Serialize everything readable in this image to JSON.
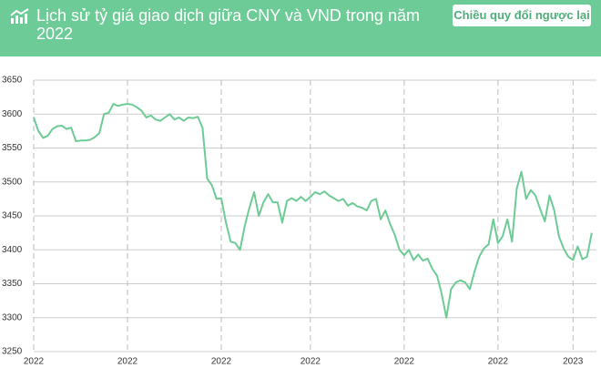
{
  "header": {
    "title": "Lịch sử tỷ giá giao dịch giữa CNY và VND trong năm 2022",
    "button": "Chiều quy đổi ngược lại"
  },
  "chart_data": {
    "type": "line",
    "series": [
      {
        "color": "#6dcb95",
        "values": [
          3595,
          3575,
          3565,
          3568,
          3578,
          3582,
          3583,
          3578,
          3580,
          3560,
          3561,
          3561,
          3562,
          3566,
          3572,
          3600,
          3602,
          3615,
          3612,
          3614,
          3615,
          3614,
          3610,
          3605,
          3595,
          3598,
          3592,
          3590,
          3595,
          3600,
          3592,
          3595,
          3590,
          3595,
          3594,
          3596,
          3580,
          3505,
          3495,
          3475,
          3476,
          3440,
          3412,
          3410,
          3400,
          3435,
          3462,
          3485,
          3450,
          3470,
          3482,
          3470,
          3470,
          3440,
          3472,
          3476,
          3472,
          3478,
          3472,
          3478,
          3485,
          3482,
          3486,
          3480,
          3476,
          3472,
          3475,
          3465,
          3469,
          3464,
          3462,
          3458,
          3472,
          3475,
          3445,
          3458,
          3438,
          3422,
          3400,
          3392,
          3400,
          3385,
          3393,
          3384,
          3387,
          3372,
          3362,
          3335,
          3300,
          3342,
          3352,
          3355,
          3352,
          3342,
          3368,
          3390,
          3402,
          3408,
          3445,
          3410,
          3420,
          3445,
          3412,
          3490,
          3515,
          3475,
          3488,
          3480,
          3460,
          3442,
          3480,
          3458,
          3420,
          3402,
          3390,
          3385,
          3405,
          3386,
          3390,
          3425
        ]
      }
    ],
    "xlim": [
      0,
      120
    ],
    "xticks": [
      {
        "value": 0,
        "label": "2022"
      },
      {
        "value": 20,
        "label": "2022"
      },
      {
        "value": 40,
        "label": "2022"
      },
      {
        "value": 59,
        "label": "2022"
      },
      {
        "value": 79,
        "label": "2022"
      },
      {
        "value": 99,
        "label": "2022"
      },
      {
        "value": 115,
        "label": "2023"
      }
    ],
    "ylim": [
      3250,
      3650
    ],
    "yticks": [
      3250,
      3300,
      3350,
      3400,
      3450,
      3500,
      3550,
      3600,
      3650
    ],
    "grid": true
  }
}
